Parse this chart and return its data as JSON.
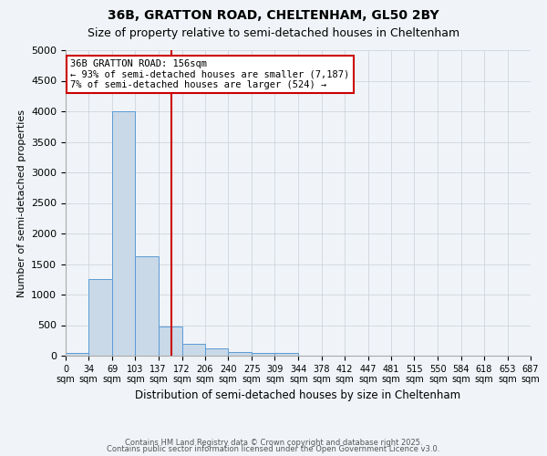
{
  "title": "36B, GRATTON ROAD, CHELTENHAM, GL50 2BY",
  "subtitle": "Size of property relative to semi-detached houses in Cheltenham",
  "xlabel": "Distribution of semi-detached houses by size in Cheltenham",
  "ylabel": "Number of semi-detached properties",
  "annotation_title": "36B GRATTON ROAD: 156sqm",
  "annotation_line1": "← 93% of semi-detached houses are smaller (7,187)",
  "annotation_line2": "7% of semi-detached houses are larger (524) →",
  "property_size": 156,
  "bin_edges": [
    0,
    34,
    69,
    103,
    137,
    172,
    206,
    240,
    275,
    309,
    344,
    378,
    412,
    447,
    481,
    515,
    550,
    584,
    618,
    653,
    687
  ],
  "bar_heights": [
    50,
    1250,
    4000,
    1620,
    480,
    195,
    115,
    60,
    40,
    40,
    0,
    0,
    0,
    0,
    0,
    0,
    0,
    0,
    0,
    0
  ],
  "bar_color": "#c9d9e8",
  "bar_edge_color": "#5b9bd5",
  "vline_color": "#cc0000",
  "annotation_box_color": "#cc0000",
  "background_color": "#f0f4f8",
  "grid_color": "#c8d0d8",
  "ylim": [
    0,
    5000
  ],
  "xlim": [
    0,
    687
  ],
  "tick_labels": [
    "0\nsqm",
    "34\nsqm",
    "69\nsqm",
    "103\nsqm",
    "137\nsqm",
    "172\nsqm",
    "206\nsqm",
    "240\nsqm",
    "275\nsqm",
    "309\nsqm",
    "344\nsqm",
    "378\nsqm",
    "412\nsqm",
    "447\nsqm",
    "481\nsqm",
    "515\nsqm",
    "550\nsqm",
    "584\nsqm",
    "618\nsqm",
    "653\nsqm",
    "687\nsqm"
  ],
  "footer1": "Contains HM Land Registry data © Crown copyright and database right 2025.",
  "footer2": "Contains public sector information licensed under the Open Government Licence v3.0."
}
